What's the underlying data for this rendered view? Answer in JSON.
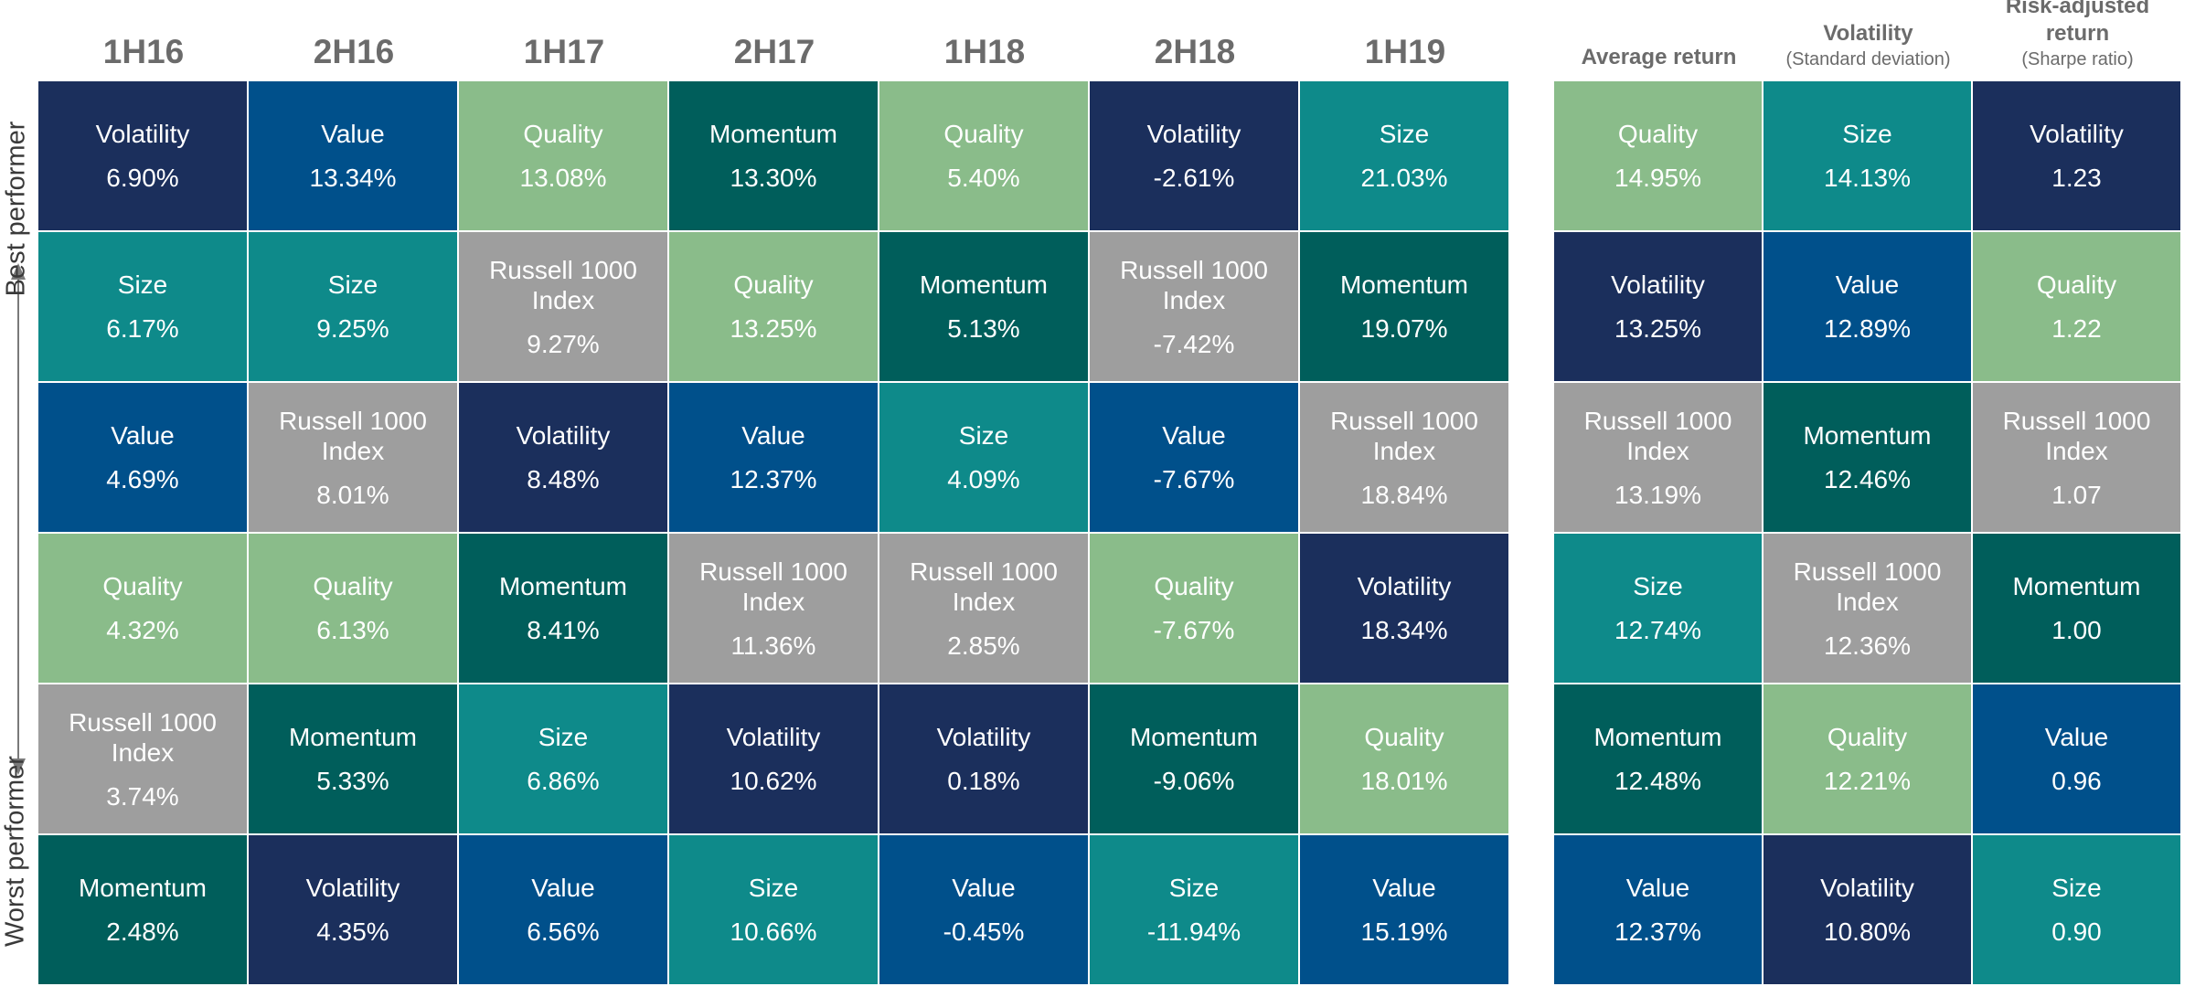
{
  "side_labels": {
    "best": "Best performer",
    "worst": "Worst performer"
  },
  "colors": {
    "Volatility": "#1b2f5c",
    "Value": "#00508b",
    "Quality": "#8abc8a",
    "Momentum": "#005e5b",
    "Size": "#0e8a8a",
    "Russell 1000 Index": "#9e9e9e"
  },
  "chart_data": [
    {
      "type": "table",
      "title": "",
      "columns": [
        {
          "label": "1H16",
          "cells": [
            {
              "name": "Volatility",
              "value": "6.90%"
            },
            {
              "name": "Size",
              "value": "6.17%"
            },
            {
              "name": "Value",
              "value": "4.69%"
            },
            {
              "name": "Quality",
              "value": "4.32%"
            },
            {
              "name": "Russell 1000 Index",
              "value": "3.74%"
            },
            {
              "name": "Momentum",
              "value": "2.48%"
            }
          ]
        },
        {
          "label": "2H16",
          "cells": [
            {
              "name": "Value",
              "value": "13.34%"
            },
            {
              "name": "Size",
              "value": "9.25%"
            },
            {
              "name": "Russell 1000 Index",
              "value": "8.01%"
            },
            {
              "name": "Quality",
              "value": "6.13%"
            },
            {
              "name": "Momentum",
              "value": "5.33%"
            },
            {
              "name": "Volatility",
              "value": "4.35%"
            }
          ]
        },
        {
          "label": "1H17",
          "cells": [
            {
              "name": "Quality",
              "value": "13.08%"
            },
            {
              "name": "Russell 1000 Index",
              "value": "9.27%"
            },
            {
              "name": "Volatility",
              "value": "8.48%"
            },
            {
              "name": "Momentum",
              "value": "8.41%"
            },
            {
              "name": "Size",
              "value": "6.86%"
            },
            {
              "name": "Value",
              "value": "6.56%"
            }
          ]
        },
        {
          "label": "2H17",
          "cells": [
            {
              "name": "Momentum",
              "value": "13.30%"
            },
            {
              "name": "Quality",
              "value": "13.25%"
            },
            {
              "name": "Value",
              "value": "12.37%"
            },
            {
              "name": "Russell 1000 Index",
              "value": "11.36%"
            },
            {
              "name": "Volatility",
              "value": "10.62%"
            },
            {
              "name": "Size",
              "value": "10.66%"
            }
          ]
        },
        {
          "label": "1H18",
          "cells": [
            {
              "name": "Quality",
              "value": "5.40%"
            },
            {
              "name": "Momentum",
              "value": "5.13%"
            },
            {
              "name": "Size",
              "value": "4.09%"
            },
            {
              "name": "Russell 1000 Index",
              "value": "2.85%"
            },
            {
              "name": "Volatility",
              "value": "0.18%"
            },
            {
              "name": "Value",
              "value": "-0.45%"
            }
          ]
        },
        {
          "label": "2H18",
          "cells": [
            {
              "name": "Volatility",
              "value": "-2.61%"
            },
            {
              "name": "Russell 1000 Index",
              "value": "-7.42%"
            },
            {
              "name": "Value",
              "value": "-7.67%"
            },
            {
              "name": "Quality",
              "value": "-7.67%"
            },
            {
              "name": "Momentum",
              "value": "-9.06%"
            },
            {
              "name": "Size",
              "value": "-11.94%"
            }
          ]
        },
        {
          "label": "1H19",
          "cells": [
            {
              "name": "Size",
              "value": "21.03%"
            },
            {
              "name": "Momentum",
              "value": "19.07%"
            },
            {
              "name": "Russell 1000 Index",
              "value": "18.84%"
            },
            {
              "name": "Volatility",
              "value": "18.34%"
            },
            {
              "name": "Quality",
              "value": "18.01%"
            },
            {
              "name": "Value",
              "value": "15.19%"
            }
          ]
        }
      ]
    },
    {
      "type": "table",
      "title": "",
      "columns": [
        {
          "label": "Average return",
          "sublabel": "",
          "cells": [
            {
              "name": "Quality",
              "value": "14.95%"
            },
            {
              "name": "Volatility",
              "value": "13.25%"
            },
            {
              "name": "Russell 1000 Index",
              "value": "13.19%"
            },
            {
              "name": "Size",
              "value": "12.74%"
            },
            {
              "name": "Momentum",
              "value": "12.48%"
            },
            {
              "name": "Value",
              "value": "12.37%"
            }
          ]
        },
        {
          "label": "Volatility",
          "sublabel": "(Standard  deviation)",
          "cells": [
            {
              "name": "Size",
              "value": "14.13%"
            },
            {
              "name": "Value",
              "value": "12.89%"
            },
            {
              "name": "Momentum",
              "value": "12.46%"
            },
            {
              "name": "Russell 1000 Index",
              "value": "12.36%"
            },
            {
              "name": "Quality",
              "value": "12.21%"
            },
            {
              "name": "Volatility",
              "value": "10.80%"
            }
          ]
        },
        {
          "label": "Risk-adjusted return",
          "sublabel": "(Sharpe ratio)",
          "cells": [
            {
              "name": "Volatility",
              "value": "1.23"
            },
            {
              "name": "Quality",
              "value": "1.22"
            },
            {
              "name": "Russell 1000 Index",
              "value": "1.07"
            },
            {
              "name": "Momentum",
              "value": "1.00"
            },
            {
              "name": "Value",
              "value": "0.96"
            },
            {
              "name": "Size",
              "value": "0.90"
            }
          ]
        }
      ]
    }
  ]
}
